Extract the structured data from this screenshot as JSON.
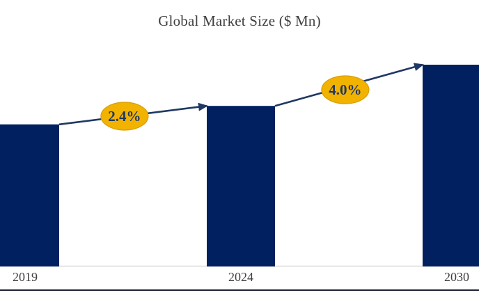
{
  "chart_data": {
    "type": "bar",
    "title": "Global Market Size ($ Mn)",
    "categories": [
      "2019",
      "2024",
      "2030"
    ],
    "values": [
      100,
      113,
      142
    ],
    "values_note": "no y-axis shown; values are a relative index (2019 = 100) estimated from bar heights",
    "growth_annotations": [
      {
        "from": "2019",
        "to": "2024",
        "label": "2.4%"
      },
      {
        "from": "2024",
        "to": "2030",
        "label": "4.0%"
      }
    ],
    "xlabel": "",
    "ylabel": "",
    "legend": "none",
    "gridlines": false,
    "y_axis_visible": false
  },
  "colors": {
    "bar": "#002060",
    "arrow": "#1f3864",
    "annotation_fill": "#f2b200",
    "annotation_stroke": "#d99e00",
    "annotation_text": "#1f3864",
    "title_text": "#3f3f3f",
    "tick_text": "#3f3f3f",
    "axis_line": "#d9d9d9",
    "bottom_rule": "#1e2230"
  }
}
